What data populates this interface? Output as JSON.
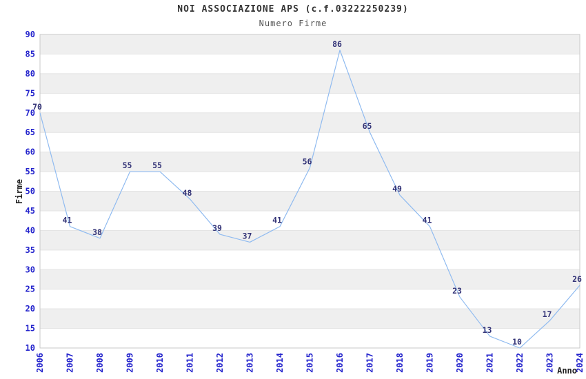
{
  "chart_data": {
    "type": "line",
    "title": "NOI ASSOCIAZIONE APS (c.f.03222250239)",
    "subtitle": "Numero Firme",
    "xlabel": "Anno",
    "ylabel": "Firme",
    "categories": [
      "2006",
      "2007",
      "2008",
      "2009",
      "2010",
      "2011",
      "2012",
      "2013",
      "2014",
      "2015",
      "2016",
      "2017",
      "2018",
      "2019",
      "2020",
      "2021",
      "2022",
      "2023",
      "2024"
    ],
    "series": [
      {
        "name": "Numero Firme",
        "values": [
          70,
          41,
          38,
          55,
          55,
          48,
          39,
          37,
          41,
          56,
          86,
          65,
          49,
          41,
          23,
          13,
          10,
          17,
          26
        ]
      }
    ],
    "ylim": [
      10,
      90
    ],
    "ytick_step": 5,
    "grid": "horizontal-bands-alternating",
    "legend_position": "none",
    "data_labels_visible": true,
    "colors": {
      "line": "#90bbf0",
      "tick_labels": "#2222cc",
      "data_labels": "#333377",
      "title": "#333333",
      "subtitle": "#555555",
      "axis_titles": "#222222",
      "band_fill": "#efefef",
      "gridline": "#e3e3e3",
      "plot_border": "#c9c9c9",
      "background": "#ffffff"
    }
  }
}
